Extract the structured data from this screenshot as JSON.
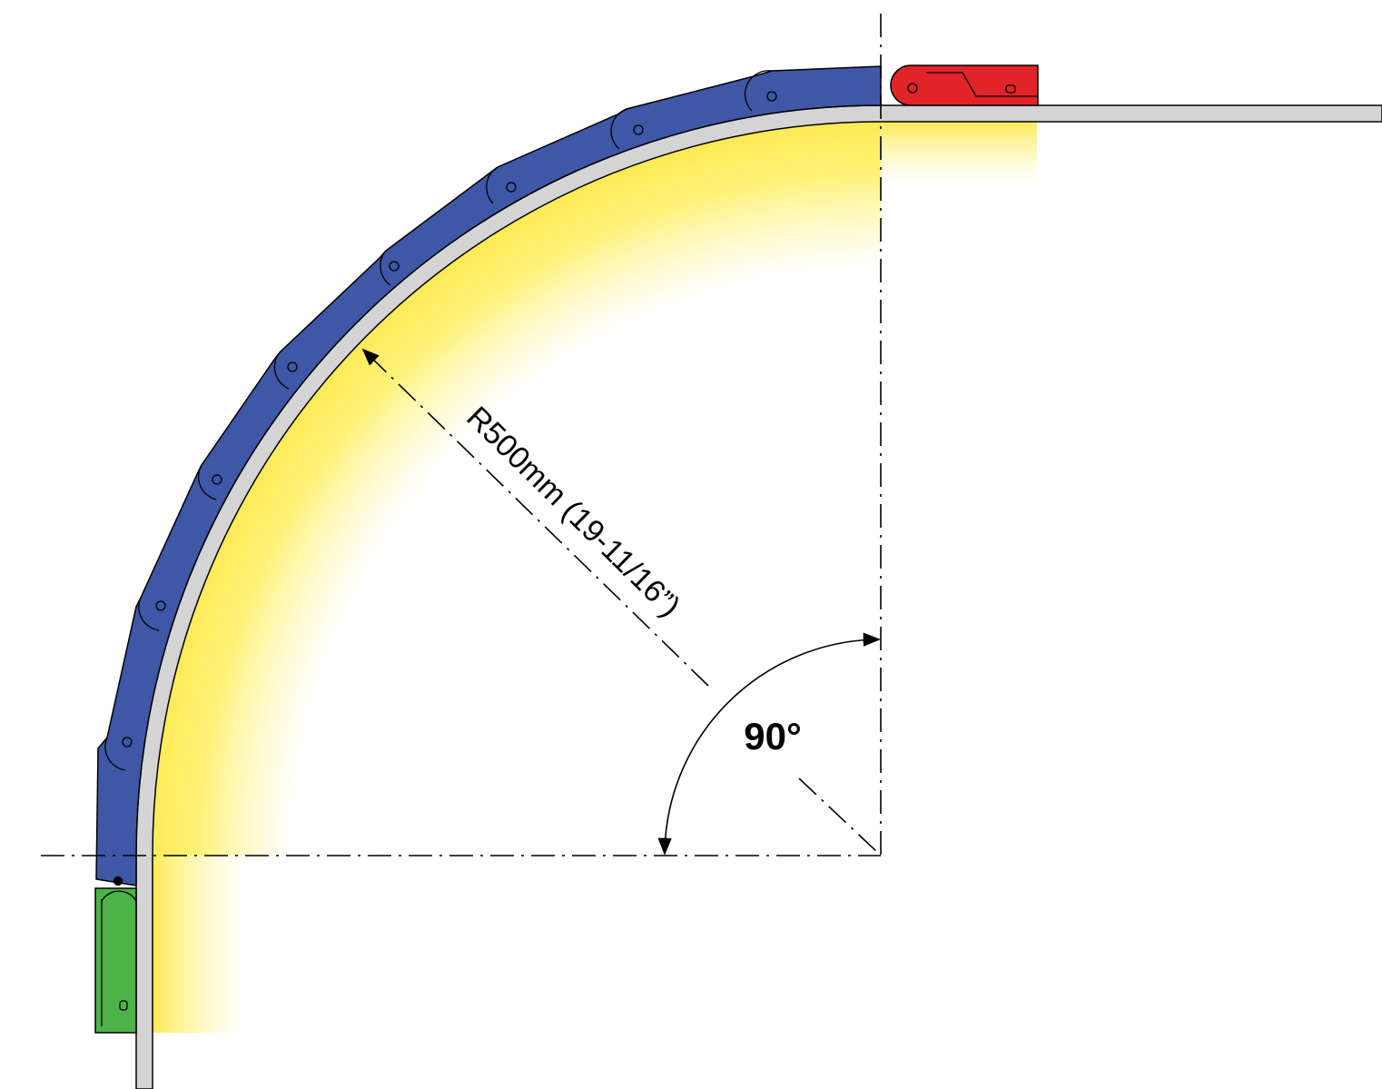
{
  "labels": {
    "radius": "R500mm (19-11/16”)",
    "angle": "90°"
  }
}
